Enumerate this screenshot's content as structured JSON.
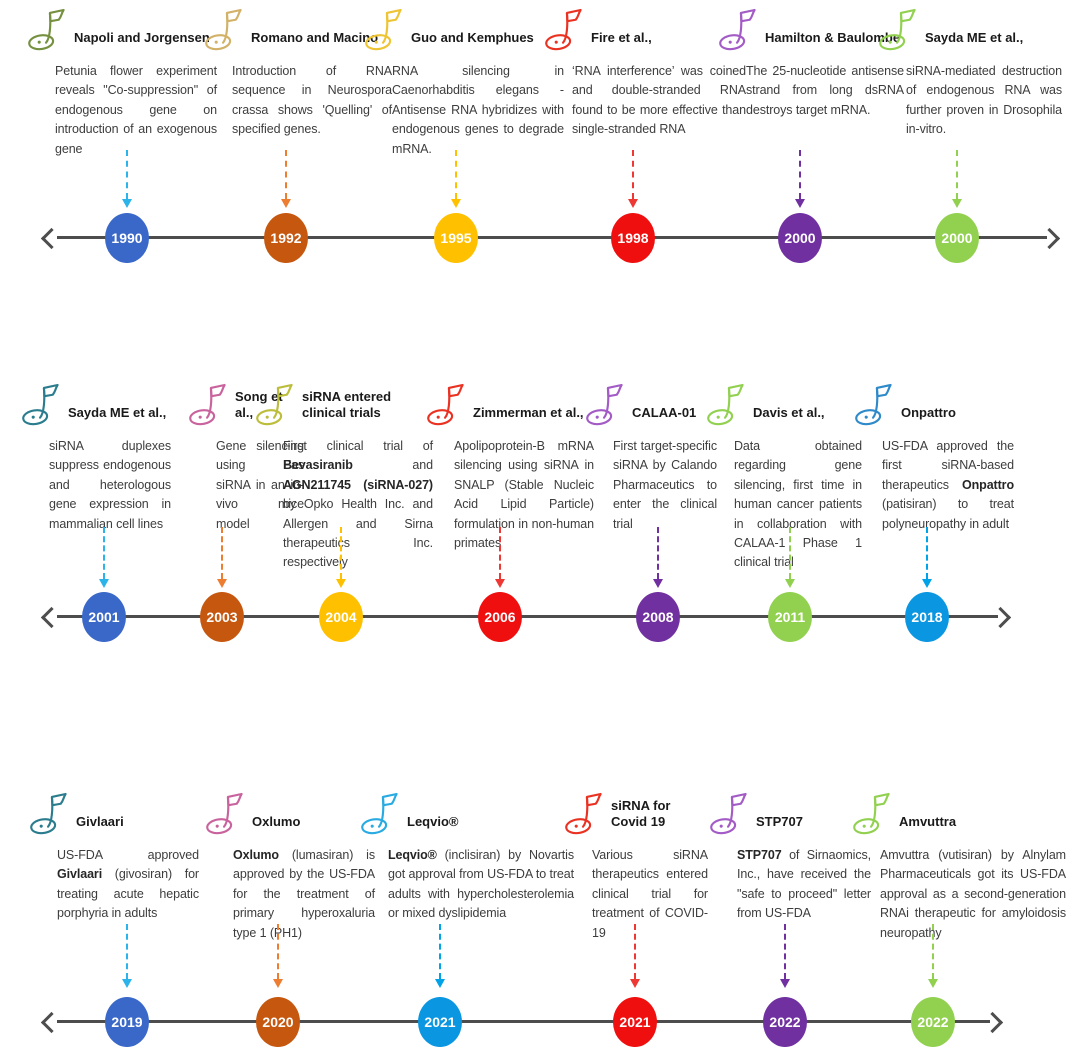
{
  "diagram": {
    "kind": "timeline",
    "axis_color": "#4d4d4d",
    "milestone_icon": "golf-flag-icon"
  },
  "rows": [
    {
      "name": "timeline-row-1",
      "items": [
        {
          "title": "Napoli and Jorgensen",
          "year": "1990",
          "icon": "golf-flag-icon",
          "icon_color": "#75903f",
          "arrow_color": "#2bb3ea",
          "node_color": "#3a68c8",
          "description": "Petunia flower experiment reveals \"Co-suppression\" of endogenous gene on introduction of an exogenous gene"
        },
        {
          "title": "Romano and Macino",
          "year": "1992",
          "icon": "golf-flag-icon",
          "icon_color": "#d2b168",
          "arrow_color": "#ed7d31",
          "node_color": "#c5570f",
          "description": "Introduction of RNA sequence in Neurospora crassa shows 'Quelling' of specified genes."
        },
        {
          "title": "Guo and Kemphues",
          "year": "1995",
          "icon": "golf-flag-icon",
          "icon_color": "#edc433",
          "arrow_color": "#ffc000",
          "node_color": "#ffc000",
          "description": "RNA silencing in Caenorhabditis elegans - Antisense RNA hybridizes with endogenous genes to degrade mRNA."
        },
        {
          "title": "Fire et al.,",
          "year": "1998",
          "icon": "golf-flag-icon",
          "icon_color": "#ea3223",
          "arrow_color": "#ed3833",
          "node_color": "#ef0f0f",
          "description": "‘RNA interference’ was coined and double-stranded RNA found to be more effective than single-stranded RNA"
        },
        {
          "title": "Hamilton & Baulombe",
          "year": "2000",
          "icon": "golf-flag-icon",
          "icon_color": "#a35bc5",
          "arrow_color": "#7030a0",
          "node_color": "#7030a0",
          "description": "The 25-nucleotide antisense strand from long dsRNA destroys target mRNA."
        },
        {
          "title": "Sayda ME et al.,",
          "year": "2000",
          "icon": "golf-flag-icon",
          "icon_color": "#92d050",
          "arrow_color": "#92d050",
          "node_color": "#92d050",
          "description": "siRNA-mediated destruction of endogenous RNA was further proven in Drosophila in-vitro."
        }
      ]
    },
    {
      "name": "timeline-row-2",
      "items": [
        {
          "title": "Sayda ME et al.,",
          "year": "2001",
          "icon": "golf-flag-icon",
          "icon_color": "#2b7d8e",
          "arrow_color": "#2bb3ea",
          "node_color": "#3a68c8",
          "description": "siRNA duplexes suppress endogenous and heterologous gene expression in mammalian cell lines"
        },
        {
          "title": "Song et al.,",
          "year": "2003",
          "icon": "golf-flag-icon",
          "icon_color": "#c9639d",
          "arrow_color": "#ed7d31",
          "node_color": "#c5570f",
          "description": "Gene silencing using Fas siRNA in an in-vivo mice model"
        },
        {
          "title": "siRNA entered clinical trials",
          "year": "2004",
          "icon": "golf-flag-icon",
          "icon_color": "#bcbd3a",
          "arrow_color": "#ffc000",
          "node_color": "#ffc000",
          "description": [
            {
              "t": "First clinical trial of "
            },
            {
              "t": "Bevasiranib",
              "b": true
            },
            {
              "t": " and "
            },
            {
              "t": "AGN211745 (siRNA-027)",
              "b": true
            },
            {
              "t": " by Opko Health Inc. and Allergen and Sirna therapeutics Inc. respectively"
            }
          ]
        },
        {
          "title": "Zimmerman et al.,",
          "year": "2006",
          "icon": "golf-flag-icon",
          "icon_color": "#ea3223",
          "arrow_color": "#ed3833",
          "node_color": "#ef0f0f",
          "description": "Apolipoprotein-B mRNA silencing using siRNA in SNALP (Stable Nucleic Acid Lipid Particle) formulation in non-human primates"
        },
        {
          "title": "CALAA-01",
          "year": "2008",
          "icon": "golf-flag-icon",
          "icon_color": "#a35bc5",
          "arrow_color": "#7030a0",
          "node_color": "#7030a0",
          "description": "First target-specific siRNA by Calando Pharmaceutics to enter the clinical trial"
        },
        {
          "title": "Davis et al.,",
          "year": "2011",
          "icon": "golf-flag-icon",
          "icon_color": "#92d050",
          "arrow_color": "#92d050",
          "node_color": "#92d050",
          "description": "Data obtained regarding gene silencing, first time in human cancer patients in collaboration with CALAA-1 Phase 1 clinical trial"
        },
        {
          "title": "Onpattro",
          "year": "2018",
          "icon": "golf-flag-icon",
          "icon_color": "#2f8ac9",
          "arrow_color": "#00a2e8",
          "node_color": "#0a96e0",
          "description": [
            {
              "t": "US-FDA approved the first siRNA-based therapeutics "
            },
            {
              "t": "Onpattro",
              "b": true
            },
            {
              "t": " (patisiran) to treat polyneuropathy in adult"
            }
          ]
        }
      ]
    },
    {
      "name": "timeline-row-3",
      "items": [
        {
          "title": "Givlaari",
          "year": "2019",
          "icon": "golf-flag-icon",
          "icon_color": "#2b7d8e",
          "arrow_color": "#2bb3ea",
          "node_color": "#3a68c8",
          "description": [
            {
              "t": "US-FDA approved "
            },
            {
              "t": "Givlaari",
              "b": true
            },
            {
              "t": " (givosiran) for treating acute hepatic porphyria in adults"
            }
          ]
        },
        {
          "title": "Oxlumo",
          "year": "2020",
          "icon": "golf-flag-icon",
          "icon_color": "#c9639d",
          "arrow_color": "#ed7d31",
          "node_color": "#c5570f",
          "description": [
            {
              "t": "Oxlumo",
              "b": true
            },
            {
              "t": " (lumasiran) is approved by the US-FDA for the treatment of primary hyperoxaluria type 1 (PH1)"
            }
          ]
        },
        {
          "title": "Leqvio®",
          "year": "2021",
          "icon": "golf-flag-icon",
          "icon_color": "#29abe2",
          "arrow_color": "#00a2e8",
          "node_color": "#0a96e0",
          "description": [
            {
              "t": "Leqvio®",
              "b": true
            },
            {
              "t": " (inclisiran) by Novartis got approval from US-FDA to treat adults with hypercholesterolemia or mixed dyslipidemia"
            }
          ]
        },
        {
          "title": "siRNA for Covid 19",
          "year": "2021",
          "icon": "golf-flag-icon",
          "icon_color": "#ea3223",
          "arrow_color": "#ed3833",
          "node_color": "#ef0f0f",
          "description": "Various siRNA therapeutics entered clinical trial for treatment of COVID-19"
        },
        {
          "title": "STP707",
          "year": "2022",
          "icon": "golf-flag-icon",
          "icon_color": "#a35bc5",
          "arrow_color": "#7030a0",
          "node_color": "#7030a0",
          "description": [
            {
              "t": "STP707",
              "b": true
            },
            {
              "t": " of Sirnaomics, Inc., have received the \"safe to proceed\" letter from US-FDA"
            }
          ]
        },
        {
          "title": "Amvuttra",
          "year": "2022",
          "icon": "golf-flag-icon",
          "icon_color": "#92d050",
          "arrow_color": "#92d050",
          "node_color": "#92d050",
          "description": "Amvuttra (vutisiran) by Alnylam Pharmaceuticals got its US-FDA approval as a second-generation RNAi therapeutic for amyloidosis neuropathy"
        }
      ]
    }
  ]
}
